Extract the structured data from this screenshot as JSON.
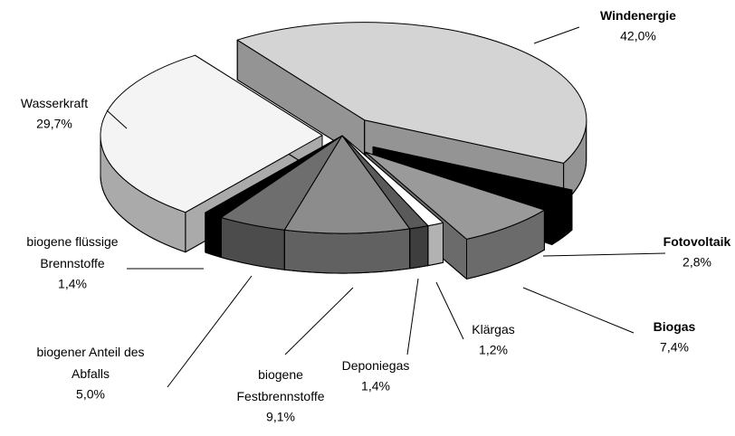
{
  "chart_data": {
    "type": "pie",
    "categories": [
      "Windenergie",
      "Fotovoltaik",
      "Biogas",
      "Klärgas",
      "Deponiegas",
      "biogene\nFestbrennstoffe",
      "biogener Anteil des\nAbfalls",
      "biogene flüssige\nBrennstoffe",
      "Wasserkraft"
    ],
    "values": [
      42.0,
      2.8,
      7.4,
      1.2,
      1.4,
      9.1,
      5.0,
      1.4,
      29.7
    ],
    "value_labels": [
      "42,0%",
      "2,8%",
      "7,4%",
      "1,2%",
      "1,4%",
      "9,1%",
      "5,0%",
      "1,4%",
      "29,7%"
    ],
    "colors": [
      "#d4d4d4",
      "#000000",
      "#9a9a9a",
      "#ffffff",
      "#5a5a5a",
      "#8c8c8c",
      "#6e6e6e",
      "#000000",
      "#f4f4f4"
    ]
  }
}
